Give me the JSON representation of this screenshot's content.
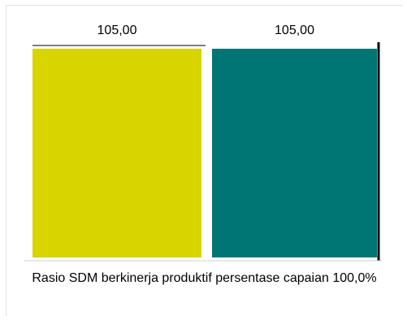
{
  "chart_data": {
    "type": "bar",
    "categories": [
      "Rasio SDM berkinerja produktif persentase capaian 100,0%"
    ],
    "series": [
      {
        "values": [
          105.0
        ],
        "color": "#d7d400"
      },
      {
        "values": [
          105.0
        ],
        "color": "#007674"
      }
    ],
    "data_labels": [
      "105,00",
      "105,00"
    ],
    "ylim": [
      0,
      105
    ],
    "grid": false,
    "legend": "none"
  }
}
